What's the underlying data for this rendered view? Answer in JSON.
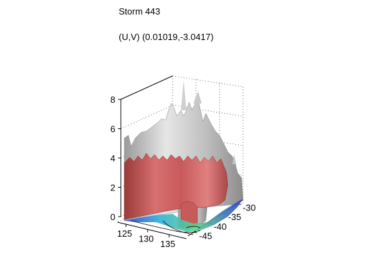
{
  "chart_data": {
    "type": "surface3d",
    "title": "Storm 443",
    "subtitle": "(U,V) (0.01019,-3.0417)",
    "xlabel": "",
    "ylabel": "",
    "zlabel": "",
    "x_ticks": [
      125,
      130,
      135
    ],
    "y_ticks": [
      -45,
      -40,
      -35,
      -30
    ],
    "z_ticks": [
      0,
      2,
      4,
      6,
      8
    ],
    "xlim": [
      123,
      139
    ],
    "ylim": [
      -47,
      -28
    ],
    "zlim": [
      0,
      8
    ],
    "grid": "dotted",
    "legend": "none",
    "isosurfaces": [
      {
        "level": "upper",
        "color": "#c8c8c8",
        "max_height": 7.4
      },
      {
        "level": "lower",
        "color": "#c85a5a",
        "max_height": 4.1
      }
    ],
    "base_colormap": [
      "#2a3fd0",
      "#2fb0d8",
      "#5fd08a",
      "#e8e060"
    ]
  }
}
